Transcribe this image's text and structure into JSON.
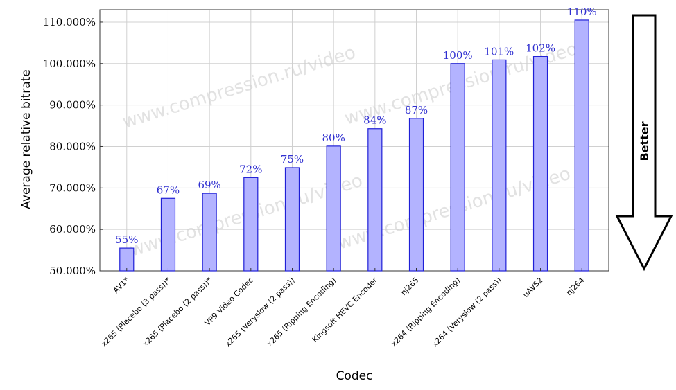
{
  "chart_data": {
    "type": "bar",
    "categories": [
      "AV1*",
      "x265 (Placebo (3 pass))*",
      "x265 (Placebo (2 pass))*",
      "VP9 Video Codec",
      "x265 (Veryslow (2 pass))",
      "x265 (Ripping Encoding)",
      "Kingsoft HEVC Encoder",
      "nj265",
      "x264 (Ripping Encoding)",
      "x264 (Veryslow (2 pass))",
      "uAVS2",
      "nj264"
    ],
    "values": [
      55.5,
      67.5,
      68.7,
      72.5,
      74.9,
      80.1,
      84.3,
      86.8,
      100.0,
      100.9,
      101.7,
      110.5
    ],
    "data_labels": [
      "55%",
      "67%",
      "69%",
      "72%",
      "75%",
      "80%",
      "84%",
      "87%",
      "100%",
      "101%",
      "102%",
      "110%"
    ],
    "y_ticks": [
      50,
      60,
      70,
      80,
      90,
      100,
      110
    ],
    "y_tick_labels": [
      "50.000%",
      "60.000%",
      "70.000%",
      "80.000%",
      "90.000%",
      "100.000%",
      "110.000%"
    ],
    "xlabel": "Codec",
    "ylabel": "Average relative bitrate",
    "ylim": [
      50,
      113
    ],
    "grid": true,
    "bar_fill": "#b3b3ff",
    "bar_stroke": "#1f1fd6",
    "label_color": "#2f2fd0"
  },
  "annotations": {
    "better_label": "Better",
    "watermark": "www.compression.ru/video"
  }
}
